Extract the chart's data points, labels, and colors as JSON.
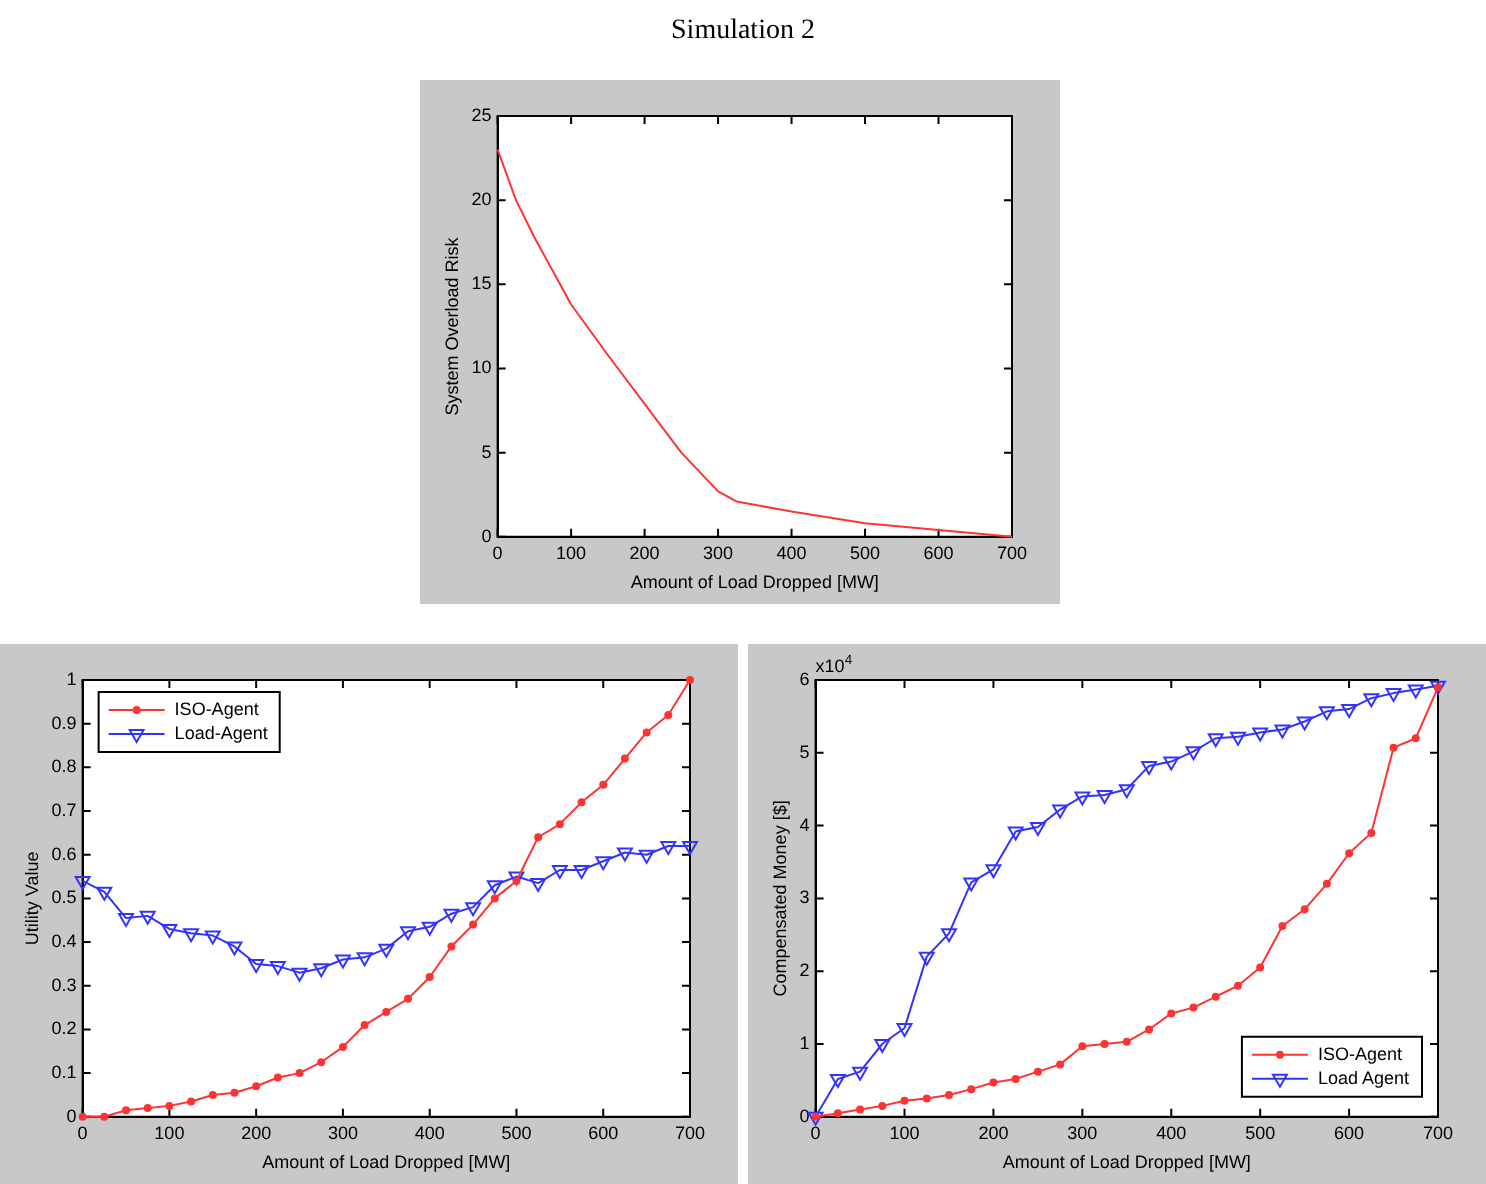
{
  "chart_data": [
    {
      "type": "line",
      "title": "Simulation 2",
      "xlabel": "Amount of Load Dropped [MW]",
      "ylabel": "System Overload Risk",
      "grid": false,
      "marker": "none",
      "x": [
        0,
        25,
        50,
        100,
        150,
        200,
        250,
        300,
        325,
        400,
        500,
        600,
        700
      ],
      "series": [
        {
          "color": "#ff3333",
          "values": [
            23,
            20,
            17.8,
            13.8,
            10.8,
            7.9,
            5,
            2.7,
            2.1,
            1.5,
            0.8,
            0.4,
            0
          ]
        }
      ],
      "xlim": [
        0,
        700
      ],
      "xticks": [
        0,
        100,
        200,
        300,
        400,
        500,
        600,
        700
      ],
      "ylim": [
        0,
        25
      ],
      "yticks": [
        0,
        5,
        10,
        15,
        20,
        25
      ]
    },
    {
      "type": "line",
      "xlabel": "Amount of Load Dropped [MW]",
      "ylabel": "Utility Value",
      "grid": false,
      "legend": "top left",
      "x": [
        0,
        25,
        50,
        75,
        100,
        125,
        150,
        175,
        200,
        225,
        250,
        275,
        300,
        325,
        350,
        375,
        400,
        425,
        450,
        475,
        500,
        525,
        550,
        575,
        600,
        625,
        650,
        675,
        700
      ],
      "series": [
        {
          "name": "ISO-Agent",
          "color": "#ff3333",
          "marker": "circle",
          "values": [
            0,
            0,
            0.015,
            0.02,
            0.025,
            0.035,
            0.05,
            0.055,
            0.07,
            0.09,
            0.1,
            0.125,
            0.16,
            0.21,
            0.24,
            0.27,
            0.32,
            0.39,
            0.44,
            0.5,
            0.54,
            0.64,
            0.67,
            0.72,
            0.76,
            0.82,
            0.88,
            0.92,
            1.0
          ]
        },
        {
          "name": "Load-Agent",
          "color": "#3333ff",
          "marker": "triangle",
          "values": [
            0.54,
            0.515,
            0.455,
            0.46,
            0.43,
            0.42,
            0.415,
            0.39,
            0.35,
            0.345,
            0.33,
            0.34,
            0.36,
            0.365,
            0.385,
            0.425,
            0.435,
            0.465,
            0.48,
            0.53,
            0.55,
            0.535,
            0.565,
            0.565,
            0.585,
            0.605,
            0.6,
            0.62,
            0.62
          ]
        }
      ],
      "xlim": [
        0,
        700
      ],
      "xticks": [
        0,
        100,
        200,
        300,
        400,
        500,
        600,
        700
      ],
      "ylim": [
        0,
        1
      ],
      "yticks": [
        0,
        0.1,
        0.2,
        0.3,
        0.4,
        0.5,
        0.6,
        0.7,
        0.8,
        0.9,
        1
      ]
    },
    {
      "type": "line",
      "xlabel": "Amount of Load Dropped [MW]",
      "ylabel": "Compensated Money [$]",
      "grid": false,
      "legend": "bottom right",
      "annotations": [
        "x10$^{4}$"
      ],
      "x": [
        0,
        25,
        50,
        75,
        100,
        125,
        150,
        175,
        200,
        225,
        250,
        275,
        300,
        325,
        350,
        375,
        400,
        425,
        450,
        475,
        500,
        525,
        550,
        575,
        600,
        625,
        650,
        675,
        700
      ],
      "series": [
        {
          "name": "ISO-Agent",
          "color": "#ff3333",
          "marker": "circle",
          "values": [
            0,
            0.05,
            0.1,
            0.15,
            0.22,
            0.25,
            0.3,
            0.38,
            0.47,
            0.52,
            0.62,
            0.72,
            0.97,
            1.0,
            1.03,
            1.2,
            1.42,
            1.5,
            1.65,
            1.8,
            2.05,
            2.62,
            2.85,
            3.2,
            3.62,
            3.9,
            5.07,
            5.2,
            5.9
          ]
        },
        {
          "name": "Load Agent",
          "color": "#3333ff",
          "marker": "triangle",
          "values": [
            0,
            0.52,
            0.62,
            1.0,
            1.22,
            2.2,
            2.52,
            3.22,
            3.4,
            3.92,
            3.98,
            4.22,
            4.4,
            4.42,
            4.5,
            4.82,
            4.88,
            5.02,
            5.2,
            5.22,
            5.28,
            5.32,
            5.43,
            5.57,
            5.6,
            5.75,
            5.82,
            5.87,
            5.92
          ]
        }
      ],
      "xlim": [
        0,
        700
      ],
      "xticks": [
        0,
        100,
        200,
        300,
        400,
        500,
        600,
        700
      ],
      "ylim": [
        0,
        6
      ],
      "yticks": [
        0,
        1,
        2,
        3,
        4,
        5,
        6
      ]
    }
  ]
}
